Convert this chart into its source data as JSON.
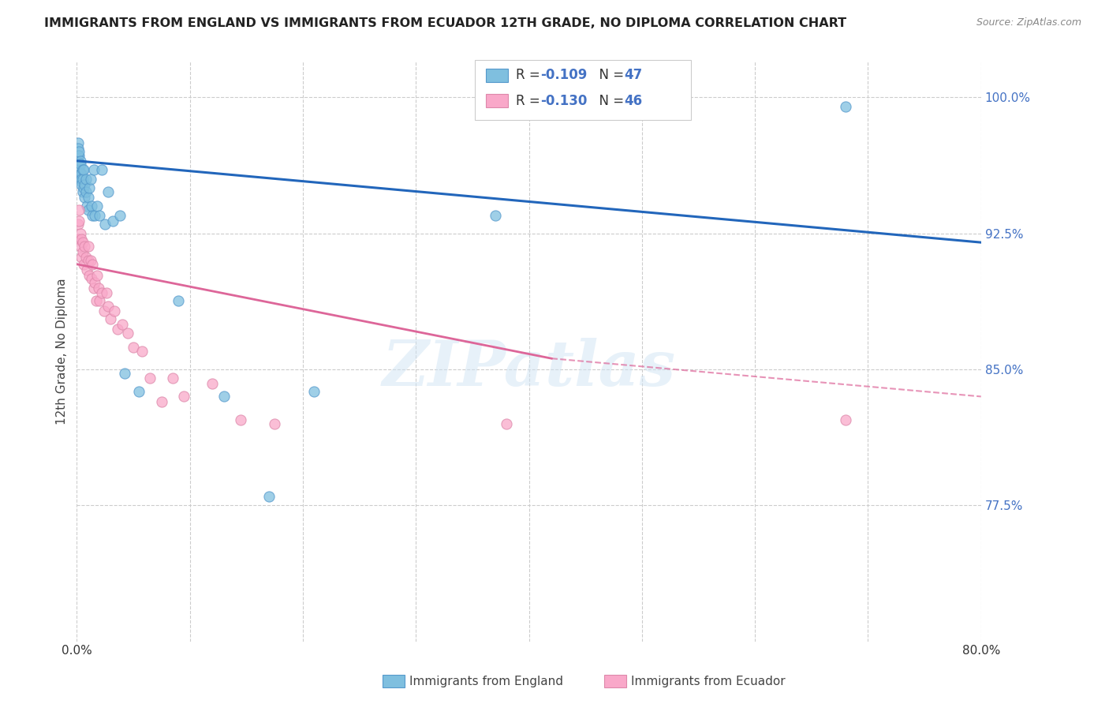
{
  "title": "IMMIGRANTS FROM ENGLAND VS IMMIGRANTS FROM ECUADOR 12TH GRADE, NO DIPLOMA CORRELATION CHART",
  "source": "Source: ZipAtlas.com",
  "ylabel": "12th Grade, No Diploma",
  "xlim": [
    0.0,
    0.8
  ],
  "ylim": [
    0.7,
    1.02
  ],
  "xticks": [
    0.0,
    0.1,
    0.2,
    0.3,
    0.4,
    0.5,
    0.6,
    0.7,
    0.8
  ],
  "xticklabels": [
    "0.0%",
    "",
    "",
    "",
    "",
    "",
    "",
    "",
    "80.0%"
  ],
  "yticks_right": [
    0.775,
    0.85,
    0.925,
    1.0
  ],
  "yticklabels_right": [
    "77.5%",
    "85.0%",
    "92.5%",
    "100.0%"
  ],
  "england_R": -0.109,
  "england_N": 47,
  "ecuador_R": -0.13,
  "ecuador_N": 46,
  "england_color": "#7fbfdf",
  "ecuador_color": "#f9a8c9",
  "england_line_color": "#2266bb",
  "ecuador_line_color": "#dd6699",
  "watermark": "ZIPatlas",
  "england_x": [
    0.001,
    0.001,
    0.001,
    0.002,
    0.002,
    0.002,
    0.002,
    0.003,
    0.003,
    0.003,
    0.003,
    0.004,
    0.004,
    0.004,
    0.005,
    0.005,
    0.005,
    0.006,
    0.006,
    0.007,
    0.007,
    0.008,
    0.008,
    0.009,
    0.01,
    0.01,
    0.011,
    0.012,
    0.013,
    0.014,
    0.015,
    0.016,
    0.018,
    0.02,
    0.022,
    0.025,
    0.028,
    0.032,
    0.038,
    0.042,
    0.055,
    0.09,
    0.13,
    0.17,
    0.21,
    0.37,
    0.68
  ],
  "england_y": [
    0.975,
    0.972,
    0.968,
    0.968,
    0.97,
    0.964,
    0.96,
    0.965,
    0.963,
    0.958,
    0.954,
    0.958,
    0.955,
    0.952,
    0.96,
    0.955,
    0.948,
    0.96,
    0.95,
    0.952,
    0.945,
    0.955,
    0.948,
    0.94,
    0.945,
    0.938,
    0.95,
    0.955,
    0.94,
    0.935,
    0.96,
    0.935,
    0.94,
    0.935,
    0.96,
    0.93,
    0.948,
    0.932,
    0.935,
    0.848,
    0.838,
    0.888,
    0.835,
    0.78,
    0.838,
    0.935,
    0.995
  ],
  "ecuador_x": [
    0.001,
    0.001,
    0.002,
    0.002,
    0.003,
    0.003,
    0.004,
    0.004,
    0.005,
    0.005,
    0.006,
    0.007,
    0.008,
    0.009,
    0.01,
    0.01,
    0.011,
    0.012,
    0.013,
    0.014,
    0.015,
    0.016,
    0.017,
    0.018,
    0.019,
    0.02,
    0.022,
    0.024,
    0.026,
    0.028,
    0.03,
    0.033,
    0.036,
    0.04,
    0.045,
    0.05,
    0.058,
    0.065,
    0.075,
    0.085,
    0.095,
    0.12,
    0.145,
    0.175,
    0.38,
    0.68
  ],
  "ecuador_y": [
    0.93,
    0.922,
    0.932,
    0.938,
    0.925,
    0.918,
    0.922,
    0.912,
    0.92,
    0.915,
    0.908,
    0.918,
    0.912,
    0.905,
    0.918,
    0.91,
    0.902,
    0.91,
    0.9,
    0.908,
    0.895,
    0.898,
    0.888,
    0.902,
    0.895,
    0.888,
    0.892,
    0.882,
    0.892,
    0.885,
    0.878,
    0.882,
    0.872,
    0.875,
    0.87,
    0.862,
    0.86,
    0.845,
    0.832,
    0.845,
    0.835,
    0.842,
    0.822,
    0.82,
    0.82,
    0.822
  ]
}
